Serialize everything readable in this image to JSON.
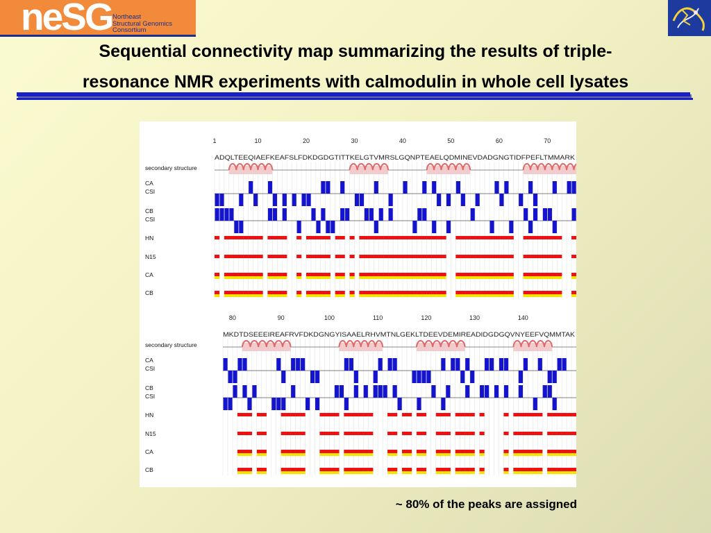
{
  "header": {
    "logo_text": "neSG",
    "logo_subtitle": [
      "Northeast",
      "Structural Genomics",
      "Consortium"
    ],
    "title_line1": "Sequential connectivity map summarizing the results of triple-",
    "title_line2": "resonance NMR experiments with calmodulin in whole cell lysates"
  },
  "figure": {
    "panel1": {
      "ticks": [
        "1",
        "10",
        "20",
        "30",
        "40",
        "50",
        "60",
        "70"
      ],
      "sequence": "ADQLTEEQIAEFKEAFSLFDKDGDGTITTKELGTVMRSLGQNPTEAELQDMINEVDADGNGTIDFPEFLTMMARK",
      "row_labels": [
        "secondary structure",
        "CA",
        "CSI",
        "CB",
        "CSI",
        "HN",
        "N15",
        "CA",
        "CB"
      ]
    },
    "panel2": {
      "ticks": [
        "80",
        "90",
        "100",
        "110",
        "120",
        "130",
        "140"
      ],
      "sequence": "MKDTDSEEEIREAFRVFDKDGNGYISAAELRHVMTNLGEKLTDEEVDEMIREADIDGDGQVNYEEFVQMMTAK",
      "row_labels": [
        "secondary structure",
        "CA",
        "CSI",
        "CB",
        "CSI",
        "HN",
        "N15",
        "CA",
        "CB"
      ]
    },
    "colors": {
      "csi": "#1414cc",
      "assigned": "#ee1111",
      "partial": "#f5e400",
      "helix": "#e06868"
    }
  },
  "caption": "~ 80% of the peaks are assigned"
}
